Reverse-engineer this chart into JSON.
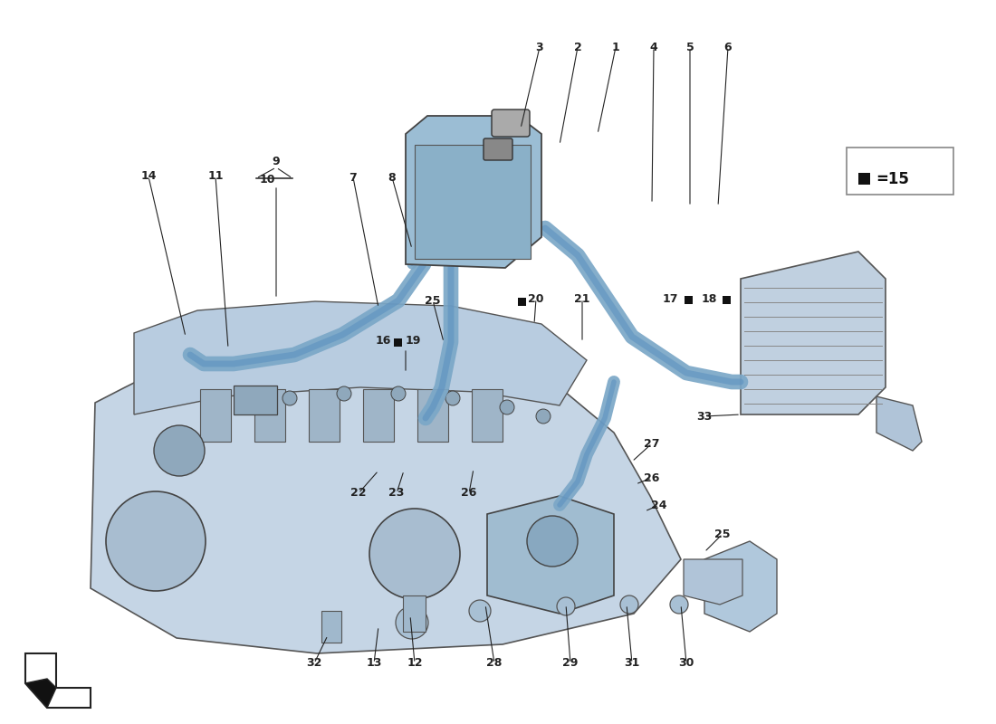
{
  "background_color": "#ffffff",
  "engine_color": "#b8cce0",
  "engine_dark": "#9fb5c8",
  "pipe_color": "#7ba7c7",
  "pipe_highlight": "#5a8fbf",
  "intercooler_color": "#c0d0e0",
  "reservoir_color": "#9bbdd4",
  "reservoir_inner": "#8ab0c8",
  "watermark_color": "#c8d8e8",
  "label_color": "#111111",
  "leader_color": "#222222"
}
